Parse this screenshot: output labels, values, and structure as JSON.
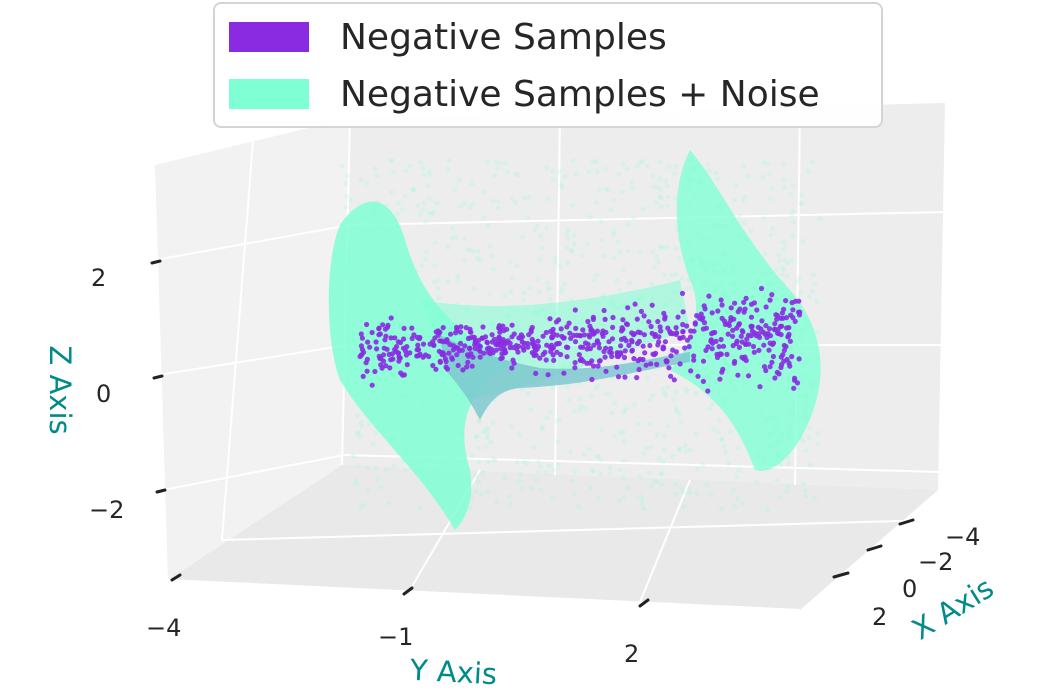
{
  "chart_data": {
    "type": "scatter3d",
    "title": "",
    "axes": {
      "x": {
        "label": "X Axis",
        "ticks": [
          "−4",
          "−2",
          "0",
          "2"
        ],
        "tick_values": [
          -4,
          -2,
          0,
          2
        ]
      },
      "y": {
        "label": "Y Axis",
        "ticks": [
          "−4",
          "−1",
          "2"
        ],
        "tick_values": [
          -4,
          -1,
          2
        ]
      },
      "z": {
        "label": "Z Axis",
        "ticks": [
          "2",
          "0",
          "−2"
        ],
        "tick_values": [
          2,
          0,
          -2
        ]
      }
    },
    "series": [
      {
        "name": "Negative Samples",
        "color": "#8a2be2"
      },
      {
        "name": "Negative Samples +  Noise",
        "color": "#7fffd4"
      }
    ],
    "legend_position": "top",
    "axis_label_color": "#008b8b",
    "grid": true
  }
}
